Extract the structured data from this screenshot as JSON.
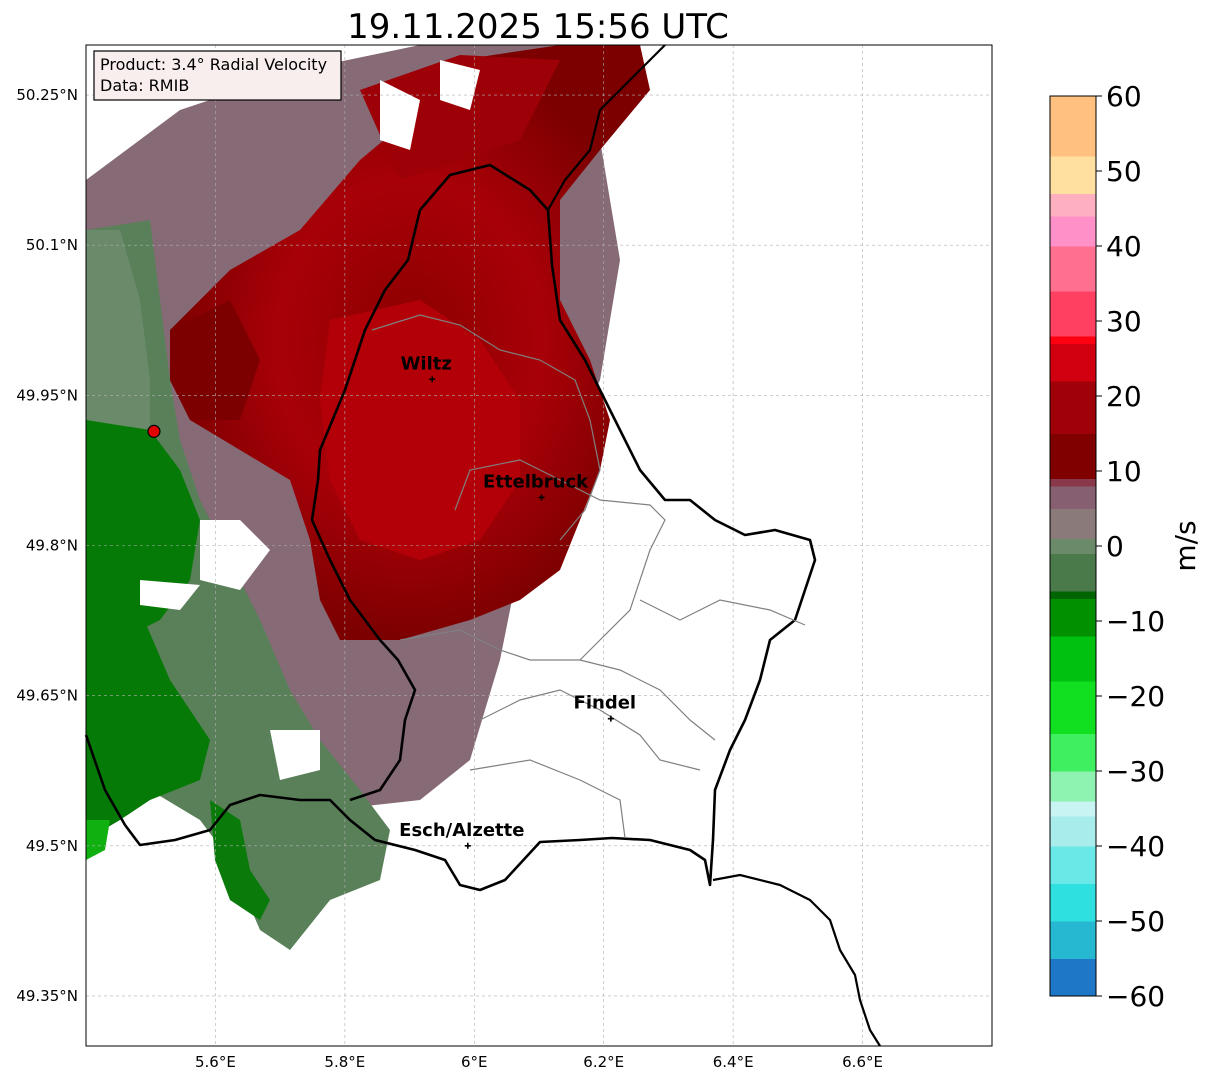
{
  "title": "19.11.2025 15:56 UTC",
  "info_box": {
    "product": "Product: 3.4° Radial Velocity",
    "data": "Data: RMIB"
  },
  "map": {
    "lon_range": [
      5.4,
      6.8
    ],
    "lat_range": [
      49.3,
      50.3
    ],
    "lon_ticks": [
      {
        "value": 5.6,
        "label": "5.6°E"
      },
      {
        "value": 5.8,
        "label": "5.8°E"
      },
      {
        "value": 6.0,
        "label": "6°E"
      },
      {
        "value": 6.2,
        "label": "6.2°E"
      },
      {
        "value": 6.4,
        "label": "6.4°E"
      },
      {
        "value": 6.6,
        "label": "6.6°E"
      }
    ],
    "lat_ticks": [
      {
        "value": 50.25,
        "label": "50.25°N"
      },
      {
        "value": 50.1,
        "label": "50.1°N"
      },
      {
        "value": 49.95,
        "label": "49.95°N"
      },
      {
        "value": 49.8,
        "label": "49.8°N"
      },
      {
        "value": 49.65,
        "label": "49.65°N"
      },
      {
        "value": 49.5,
        "label": "49.5°N"
      },
      {
        "value": 49.35,
        "label": "49.35°N"
      }
    ],
    "radar_site": {
      "lon": 5.505,
      "lat": 49.914
    },
    "cities": [
      {
        "name": "Wiltz",
        "lon": 5.935,
        "lat": 49.966
      },
      {
        "name": "Ettelbruck",
        "lon": 6.104,
        "lat": 49.848
      },
      {
        "name": "Findel",
        "lon": 6.211,
        "lat": 49.627
      },
      {
        "name": "Esch/Alzette",
        "lon": 5.99,
        "lat": 49.5
      }
    ]
  },
  "colorbar": {
    "label": "m/s",
    "min": -60,
    "max": 60,
    "ticks": [
      {
        "value": 60,
        "label": "60"
      },
      {
        "value": 50,
        "label": "50"
      },
      {
        "value": 40,
        "label": "40"
      },
      {
        "value": 30,
        "label": "30"
      },
      {
        "value": 20,
        "label": "20"
      },
      {
        "value": 10,
        "label": "10"
      },
      {
        "value": 0,
        "label": "0"
      },
      {
        "value": -10,
        "label": "−10"
      },
      {
        "value": -20,
        "label": "−20"
      },
      {
        "value": -30,
        "label": "−30"
      },
      {
        "value": -40,
        "label": "−40"
      },
      {
        "value": -50,
        "label": "−50"
      },
      {
        "value": -60,
        "label": "−60"
      }
    ],
    "stops": [
      {
        "value": -60,
        "color": "#1f77c8"
      },
      {
        "value": -55,
        "color": "#25b8d0"
      },
      {
        "value": -50,
        "color": "#2fe0e0"
      },
      {
        "value": -45,
        "color": "#6ae8e8"
      },
      {
        "value": -40,
        "color": "#a8ecec"
      },
      {
        "value": -36,
        "color": "#c8f4f4"
      },
      {
        "value": -34,
        "color": "#8ef2b0"
      },
      {
        "value": -30,
        "color": "#3ef060"
      },
      {
        "value": -25,
        "color": "#10e020"
      },
      {
        "value": -18,
        "color": "#00c010"
      },
      {
        "value": -12,
        "color": "#009000"
      },
      {
        "value": -7,
        "color": "#006400"
      },
      {
        "value": -6,
        "color": "#4a7a4a"
      },
      {
        "value": -1,
        "color": "#6a8a6a"
      },
      {
        "value": 1,
        "color": "#8a7a7a"
      },
      {
        "value": 5,
        "color": "#866070"
      },
      {
        "value": 8,
        "color": "#883848"
      },
      {
        "value": 9,
        "color": "#800000"
      },
      {
        "value": 15,
        "color": "#a00008"
      },
      {
        "value": 22,
        "color": "#d00010"
      },
      {
        "value": 27,
        "color": "#ff0010"
      },
      {
        "value": 28,
        "color": "#ff4060"
      },
      {
        "value": 34,
        "color": "#ff7090"
      },
      {
        "value": 40,
        "color": "#ff90c8"
      },
      {
        "value": 44,
        "color": "#ffb0c0"
      },
      {
        "value": 47,
        "color": "#ffe0a0"
      },
      {
        "value": 52,
        "color": "#ffc080"
      },
      {
        "value": 60,
        "color": "#ff9850"
      }
    ]
  },
  "colors": {
    "inbound_green": "#067a06",
    "light_green": "#5a805a",
    "neutral_gray": "#866a76",
    "outbound_dark_red": "#7c0000",
    "outbound_red": "#b00008",
    "border": "#000000",
    "admin_border": "#808080",
    "radar_marker": "#e00000"
  }
}
